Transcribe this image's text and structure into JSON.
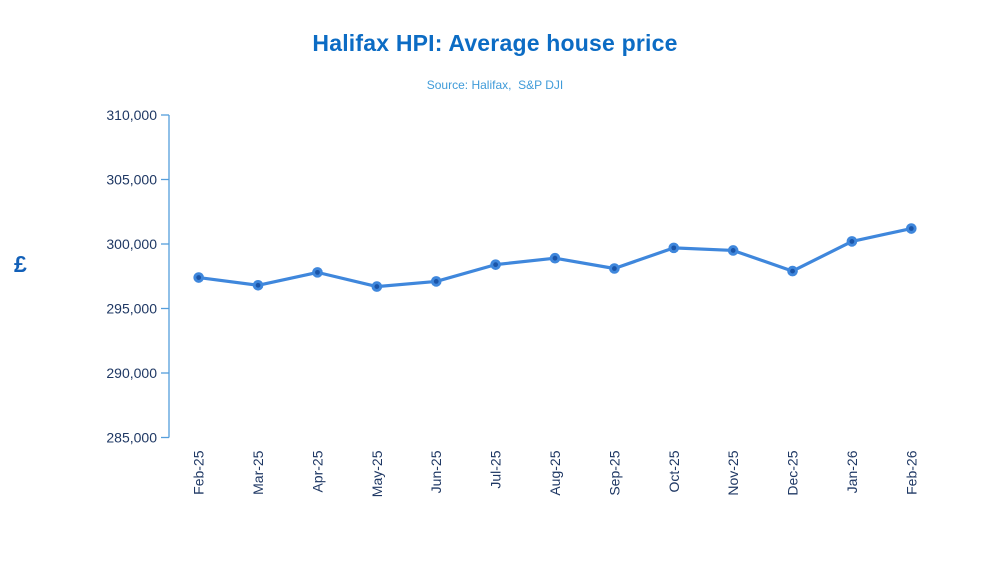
{
  "chart_data": {
    "type": "line",
    "title": "Halifax HPI: Average house price",
    "subtitle": "Source: Halifax,  S&P DJI",
    "ylabel": "£",
    "xlabel": "",
    "categories": [
      "Feb-25",
      "Mar-25",
      "Apr-25",
      "May-25",
      "Jun-25",
      "Jul-25",
      "Aug-25",
      "Sep-25",
      "Oct-25",
      "Nov-25",
      "Dec-25",
      "Jan-26",
      "Feb-26"
    ],
    "values": [
      297400,
      296800,
      297800,
      296700,
      297100,
      298400,
      298900,
      298100,
      299700,
      299500,
      297900,
      300200,
      301200
    ],
    "ylim": [
      285000,
      310000
    ],
    "y_tick_step": 5000,
    "y_tick_labels": [
      "310,000",
      "305,000",
      "300,000",
      "295,000",
      "290,000",
      "285,000"
    ],
    "grid": false,
    "legend": "none",
    "marker": "circle",
    "colors": {
      "title": "#0C6CC4",
      "subtitle": "#3F9BD9",
      "ylabel": "#1260B8",
      "line": "#3F87DC",
      "marker_inner": "#1B55A8",
      "axis": "#559EDB",
      "tick_label": "#1F3864",
      "background": "#FFFFFF"
    }
  }
}
